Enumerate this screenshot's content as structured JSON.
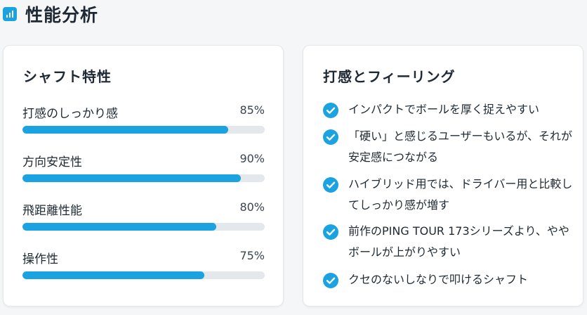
{
  "page": {
    "title": "性能分析",
    "icon": "bar-chart-icon"
  },
  "colors": {
    "accent": "#1aa3e0",
    "track": "#e4e7eb",
    "text": "#1f2933"
  },
  "shaft_characteristics": {
    "title": "シャフト特性",
    "metrics": [
      {
        "label": "打感のしっかり感",
        "value_text": "85%",
        "value": 85
      },
      {
        "label": "方向安定性",
        "value_text": "90%",
        "value": 90
      },
      {
        "label": "飛距離性能",
        "value_text": "80%",
        "value": 80
      },
      {
        "label": "操作性",
        "value_text": "75%",
        "value": 75
      }
    ]
  },
  "feel": {
    "title": "打感とフィーリング",
    "item_icon": "check-circle-icon",
    "items": [
      {
        "text": "インパクトでボールを厚く捉えやすい"
      },
      {
        "text": "「硬い」と感じるユーザーもいるが、それが安定感につながる"
      },
      {
        "text": "ハイブリッド用では、ドライバー用と比較してしっかり感が増す"
      },
      {
        "text": "前作のPING TOUR 173シリーズより、ややボールが上がりやすい"
      },
      {
        "text": "クセのないしなりで叩けるシャフト"
      }
    ]
  }
}
